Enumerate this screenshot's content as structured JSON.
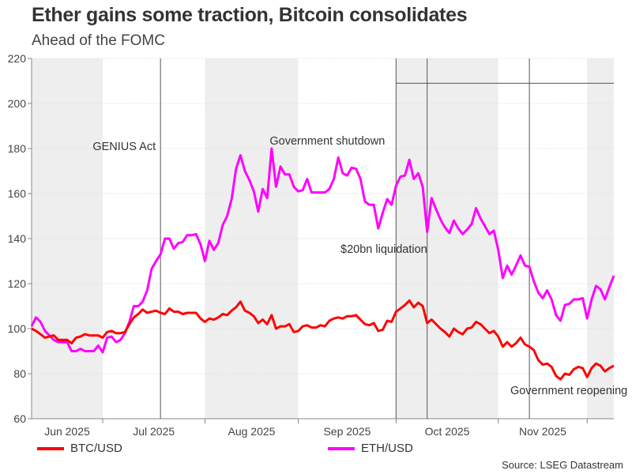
{
  "header": {
    "title": "Ether gains some traction, Bitcoin consolidates",
    "subtitle": "Ahead of the FOMC"
  },
  "source": "Source: LSEG Datastream",
  "chart_data": {
    "type": "line",
    "title": "Ether gains some traction, Bitcoin consolidates",
    "subtitle": "Ahead of the FOMC",
    "xlabel": "",
    "ylabel": "",
    "ylim": [
      60,
      220
    ],
    "yticks": [
      60,
      80,
      100,
      120,
      140,
      160,
      180,
      200,
      220
    ],
    "grid": true,
    "legend": "bottom",
    "month_ticks": [
      "2025-07-01",
      "2025-08-01",
      "2025-09-01",
      "2025-10-01",
      "2025-11-03",
      "2025-12-01"
    ],
    "month_labels": [
      {
        "label": "Jun 2025",
        "from": "2025-06-09",
        "to": "2025-07-01"
      },
      {
        "label": "Jul 2025",
        "from": "2025-07-01",
        "to": "2025-08-01"
      },
      {
        "label": "Aug 2025",
        "from": "2025-08-01",
        "to": "2025-09-01"
      },
      {
        "label": "Sep 2025",
        "from": "2025-09-01",
        "to": "2025-10-01"
      },
      {
        "label": "Oct 2025",
        "from": "2025-10-01",
        "to": "2025-11-03"
      },
      {
        "label": "Nov 2025",
        "from": "2025-11-03",
        "to": "2025-12-01"
      }
    ],
    "shaded_periods": [
      {
        "from": "2025-06-09",
        "to": "2025-07-01"
      },
      {
        "from": "2025-08-01",
        "to": "2025-09-01"
      },
      {
        "from": "2025-10-01",
        "to": "2025-11-03"
      },
      {
        "from": "2025-12-01",
        "to": "2025-12-09"
      }
    ],
    "shading_color": "#eeeeee",
    "annotations": [
      {
        "text": "GENIUS Act",
        "date": "2025-07-18"
      },
      {
        "text": "Government shutdown",
        "date": "2025-10-01"
      },
      {
        "text": "$20bn liquidation",
        "date": "2025-10-10"
      },
      {
        "text": "Government reopening",
        "date": "2025-11-12"
      }
    ],
    "reference_line": {
      "value": 209,
      "from": "2025-10-01",
      "to": "2025-12-09"
    },
    "x": [
      "2025-06-09",
      "2025-06-10",
      "2025-06-11",
      "2025-06-12",
      "2025-06-13",
      "2025-06-16",
      "2025-06-17",
      "2025-06-18",
      "2025-06-19",
      "2025-06-20",
      "2025-06-23",
      "2025-06-24",
      "2025-06-25",
      "2025-06-26",
      "2025-06-27",
      "2025-06-30",
      "2025-07-01",
      "2025-07-02",
      "2025-07-03",
      "2025-07-04",
      "2025-07-07",
      "2025-07-08",
      "2025-07-09",
      "2025-07-10",
      "2025-07-11",
      "2025-07-14",
      "2025-07-15",
      "2025-07-16",
      "2025-07-17",
      "2025-07-18",
      "2025-07-21",
      "2025-07-22",
      "2025-07-23",
      "2025-07-24",
      "2025-07-25",
      "2025-07-28",
      "2025-07-29",
      "2025-07-30",
      "2025-07-31",
      "2025-08-01",
      "2025-08-04",
      "2025-08-05",
      "2025-08-06",
      "2025-08-07",
      "2025-08-08",
      "2025-08-11",
      "2025-08-12",
      "2025-08-13",
      "2025-08-14",
      "2025-08-15",
      "2025-08-18",
      "2025-08-19",
      "2025-08-20",
      "2025-08-21",
      "2025-08-22",
      "2025-08-25",
      "2025-08-26",
      "2025-08-27",
      "2025-08-28",
      "2025-08-29",
      "2025-09-01",
      "2025-09-02",
      "2025-09-03",
      "2025-09-04",
      "2025-09-05",
      "2025-09-08",
      "2025-09-09",
      "2025-09-10",
      "2025-09-11",
      "2025-09-12",
      "2025-09-15",
      "2025-09-16",
      "2025-09-17",
      "2025-09-18",
      "2025-09-19",
      "2025-09-22",
      "2025-09-23",
      "2025-09-24",
      "2025-09-25",
      "2025-09-26",
      "2025-09-29",
      "2025-09-30",
      "2025-10-01",
      "2025-10-02",
      "2025-10-03",
      "2025-10-06",
      "2025-10-07",
      "2025-10-08",
      "2025-10-09",
      "2025-10-10",
      "2025-10-13",
      "2025-10-14",
      "2025-10-15",
      "2025-10-16",
      "2025-10-17",
      "2025-10-20",
      "2025-10-21",
      "2025-10-22",
      "2025-10-23",
      "2025-10-24",
      "2025-10-27",
      "2025-10-28",
      "2025-10-29",
      "2025-10-30",
      "2025-10-31",
      "2025-11-03",
      "2025-11-04",
      "2025-11-05",
      "2025-11-06",
      "2025-11-07",
      "2025-11-10",
      "2025-11-11",
      "2025-11-12",
      "2025-11-13",
      "2025-11-14",
      "2025-11-17",
      "2025-11-18",
      "2025-11-19",
      "2025-11-20",
      "2025-11-21",
      "2025-11-24",
      "2025-11-25",
      "2025-11-26",
      "2025-11-27",
      "2025-11-28",
      "2025-12-01",
      "2025-12-02",
      "2025-12-03",
      "2025-12-04",
      "2025-12-05",
      "2025-12-08",
      "2025-12-09"
    ],
    "series": [
      {
        "name": "BTC/USD",
        "color": "#ff0000",
        "values": [
          100,
          99,
          97.5,
          96,
          96.5,
          97,
          95,
          95,
          95,
          93.5,
          96,
          96.5,
          97.5,
          97,
          97,
          97,
          96,
          98.5,
          99,
          98,
          98,
          98.5,
          102,
          105,
          106.5,
          108.5,
          107,
          107.5,
          108,
          107,
          106.5,
          109,
          107.5,
          107.5,
          106.5,
          107,
          107,
          107,
          104.5,
          103,
          104.5,
          104,
          105,
          106.5,
          106,
          108,
          109.5,
          112,
          108,
          107,
          105.5,
          102.5,
          104,
          102,
          106,
          100,
          101,
          101,
          102,
          98.5,
          99,
          101,
          101.5,
          100.5,
          100.5,
          101.5,
          101,
          103.5,
          104.5,
          105,
          104.5,
          105.5,
          105.5,
          106,
          104,
          102,
          101.5,
          102.5,
          99,
          99.5,
          103.5,
          103,
          107.5,
          109,
          110.5,
          112.5,
          109.5,
          111.5,
          110,
          102.5,
          104,
          102,
          100,
          98.5,
          96.5,
          100,
          98.5,
          97.5,
          100,
          100.5,
          103,
          102,
          100,
          98,
          99,
          96.5,
          92,
          94,
          92,
          93.5,
          96,
          93,
          92,
          90.5,
          86,
          84,
          84.5,
          83,
          79,
          77.5,
          80,
          79.5,
          82,
          83,
          82.5,
          78.5,
          82.5,
          84.5,
          83.5,
          81,
          82.5,
          83.5
        ]
      },
      {
        "name": "ETH/USD",
        "color": "#ff00ff",
        "values": [
          101,
          105,
          103,
          99,
          97,
          95,
          94,
          94,
          94,
          90,
          90,
          91,
          90,
          90,
          90,
          92.5,
          89.5,
          96,
          96.5,
          94,
          95,
          98,
          103,
          110,
          110,
          112,
          117,
          126.5,
          130,
          133,
          140,
          140,
          135.5,
          138,
          138.5,
          141.5,
          141.5,
          142,
          137.5,
          130,
          139,
          135,
          138,
          146,
          150,
          157.5,
          171,
          177,
          170,
          166,
          161,
          152,
          162,
          158,
          180,
          163,
          172,
          168.5,
          168.5,
          163,
          161,
          161.5,
          166.5,
          160.5,
          160.5,
          160.5,
          160.5,
          162,
          166.5,
          176,
          169,
          168,
          171.5,
          171,
          166.5,
          156.5,
          155,
          155,
          144.5,
          151.5,
          157.5,
          155,
          163.5,
          167.5,
          168,
          175,
          166.5,
          169,
          163,
          143,
          158,
          153,
          148.5,
          145,
          142.5,
          148,
          144.5,
          142,
          144,
          146.5,
          153.5,
          149,
          145.5,
          142,
          143.5,
          135,
          122.5,
          128,
          124,
          128,
          132.5,
          128,
          127.5,
          121,
          116,
          113.5,
          117,
          113,
          106,
          103.5,
          110.5,
          111,
          113,
          113,
          113.5,
          104.5,
          113,
          119,
          117.5,
          113,
          118.5,
          123.5
        ]
      }
    ]
  }
}
